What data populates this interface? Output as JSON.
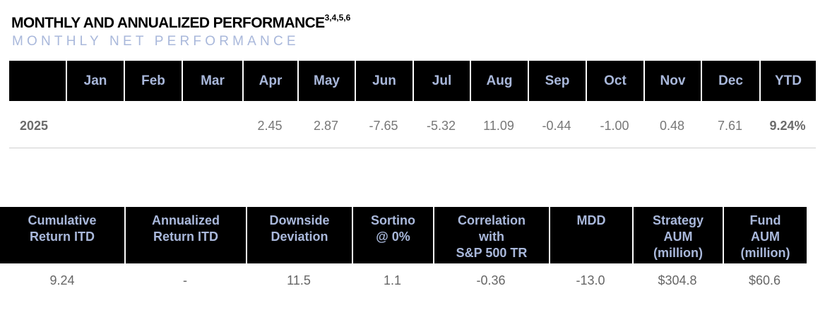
{
  "title": "MONTHLY AND ANNUALIZED PERFORMANCE",
  "title_superscript": "3,4,5,6",
  "subtitle": "MONTHLY NET PERFORMANCE",
  "monthly": {
    "headers": [
      "",
      "Jan",
      "Feb",
      "Mar",
      "Apr",
      "May",
      "Jun",
      "Jul",
      "Aug",
      "Sep",
      "Oct",
      "Nov",
      "Dec",
      "YTD"
    ],
    "row": {
      "year": "2025",
      "values": [
        "",
        "",
        "",
        "2.45",
        "2.87",
        "-7.65",
        "-5.32",
        "11.09",
        "-0.44",
        "-1.00",
        "0.48",
        "7.61"
      ],
      "ytd": "9.24%"
    }
  },
  "stats": {
    "headers": [
      [
        "Cumulative",
        "Return ITD"
      ],
      [
        "Annualized",
        "Return ITD"
      ],
      [
        "Downside",
        "Deviation"
      ],
      [
        "Sortino",
        "@ 0%"
      ],
      [
        "Correlation",
        "with",
        "S&P 500 TR"
      ],
      [
        "MDD"
      ],
      [
        "Strategy",
        "AUM",
        "(million)"
      ],
      [
        "Fund",
        "AUM",
        "(million)"
      ]
    ],
    "values": [
      "9.24",
      "-",
      "11.5",
      "1.1",
      "-0.36",
      "-13.0",
      "$304.8",
      "$60.6"
    ]
  },
  "colors": {
    "header_bg": "#000000",
    "header_text": "#a9b8db",
    "subtitle": "#a9b8db",
    "value_text": "#777777"
  }
}
